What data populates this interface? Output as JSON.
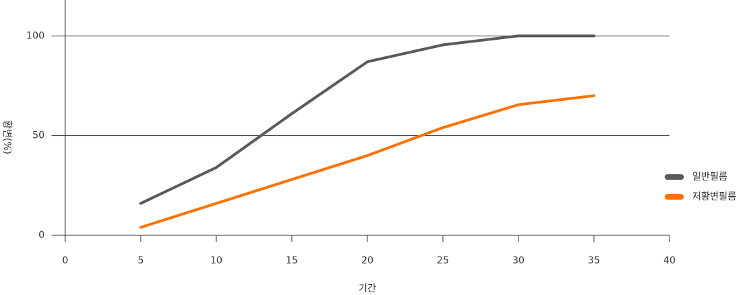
{
  "chart_data": {
    "type": "line",
    "x_label": "기간",
    "y_label": "황변(%)",
    "x": [
      5,
      10,
      15,
      20,
      25,
      30,
      35
    ],
    "series": [
      {
        "name": "일반필름",
        "color": "#5a5a5a",
        "values": [
          16,
          34,
          61,
          87,
          95.5,
          100,
          100
        ]
      },
      {
        "name": "저황변필름",
        "color": "#ff7200",
        "values": [
          4,
          16,
          28,
          40,
          54,
          65.5,
          70
        ]
      }
    ],
    "xlim": [
      0,
      40
    ],
    "xticks": [
      0,
      5,
      10,
      15,
      20,
      25,
      30,
      35,
      40
    ],
    "ylim": [
      0,
      118
    ],
    "yticks": [
      0,
      50,
      100
    ],
    "grid": true,
    "legend": "right"
  }
}
